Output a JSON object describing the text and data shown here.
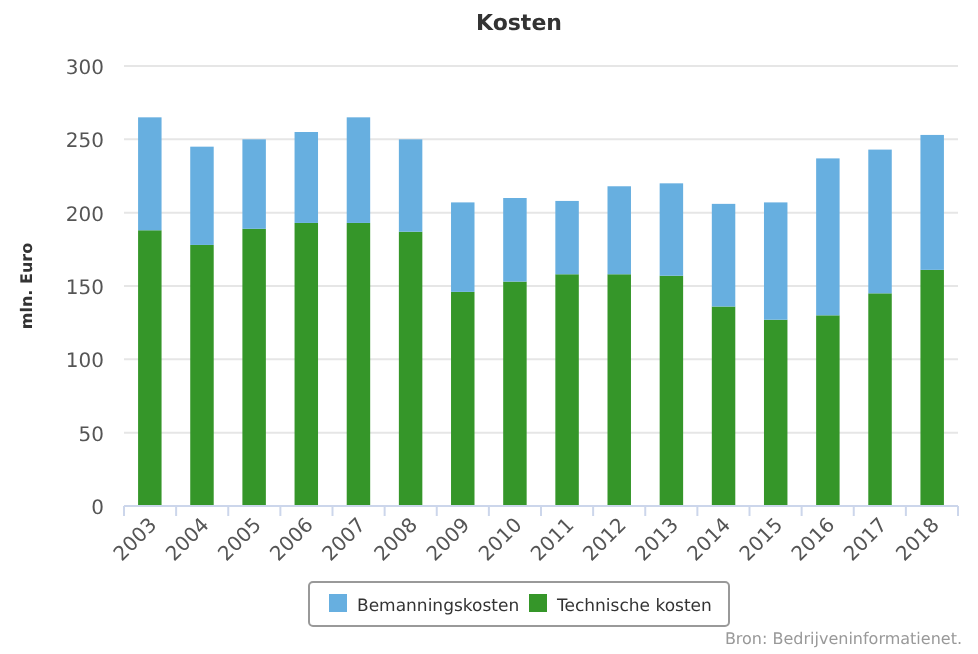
{
  "chart_data": {
    "type": "bar",
    "title": "Kosten",
    "ylabel": "mln. Euro",
    "stacked": true,
    "categories": [
      "2003",
      "2004",
      "2005",
      "2006",
      "2007",
      "2008",
      "2009",
      "2010",
      "2011",
      "2012",
      "2013",
      "2014",
      "2015",
      "2016",
      "2017",
      "2018"
    ],
    "series": [
      {
        "name": "Technische kosten",
        "color": "#359629",
        "values": [
          188,
          178,
          189,
          193,
          193,
          187,
          146,
          153,
          158,
          158,
          157,
          136,
          127,
          130,
          145,
          161
        ]
      },
      {
        "name": "Bemanningskosten",
        "color": "#67afe0",
        "values": [
          77,
          67,
          61,
          62,
          72,
          63,
          61,
          57,
          50,
          60,
          63,
          70,
          80,
          107,
          98,
          92
        ]
      }
    ],
    "ylim": [
      0,
      300
    ],
    "yticks": [
      0,
      50,
      100,
      150,
      200,
      250,
      300
    ],
    "grid": "y",
    "legend": "bottom",
    "annotations": [
      "Bron: Bedrijveninformatienet."
    ]
  }
}
